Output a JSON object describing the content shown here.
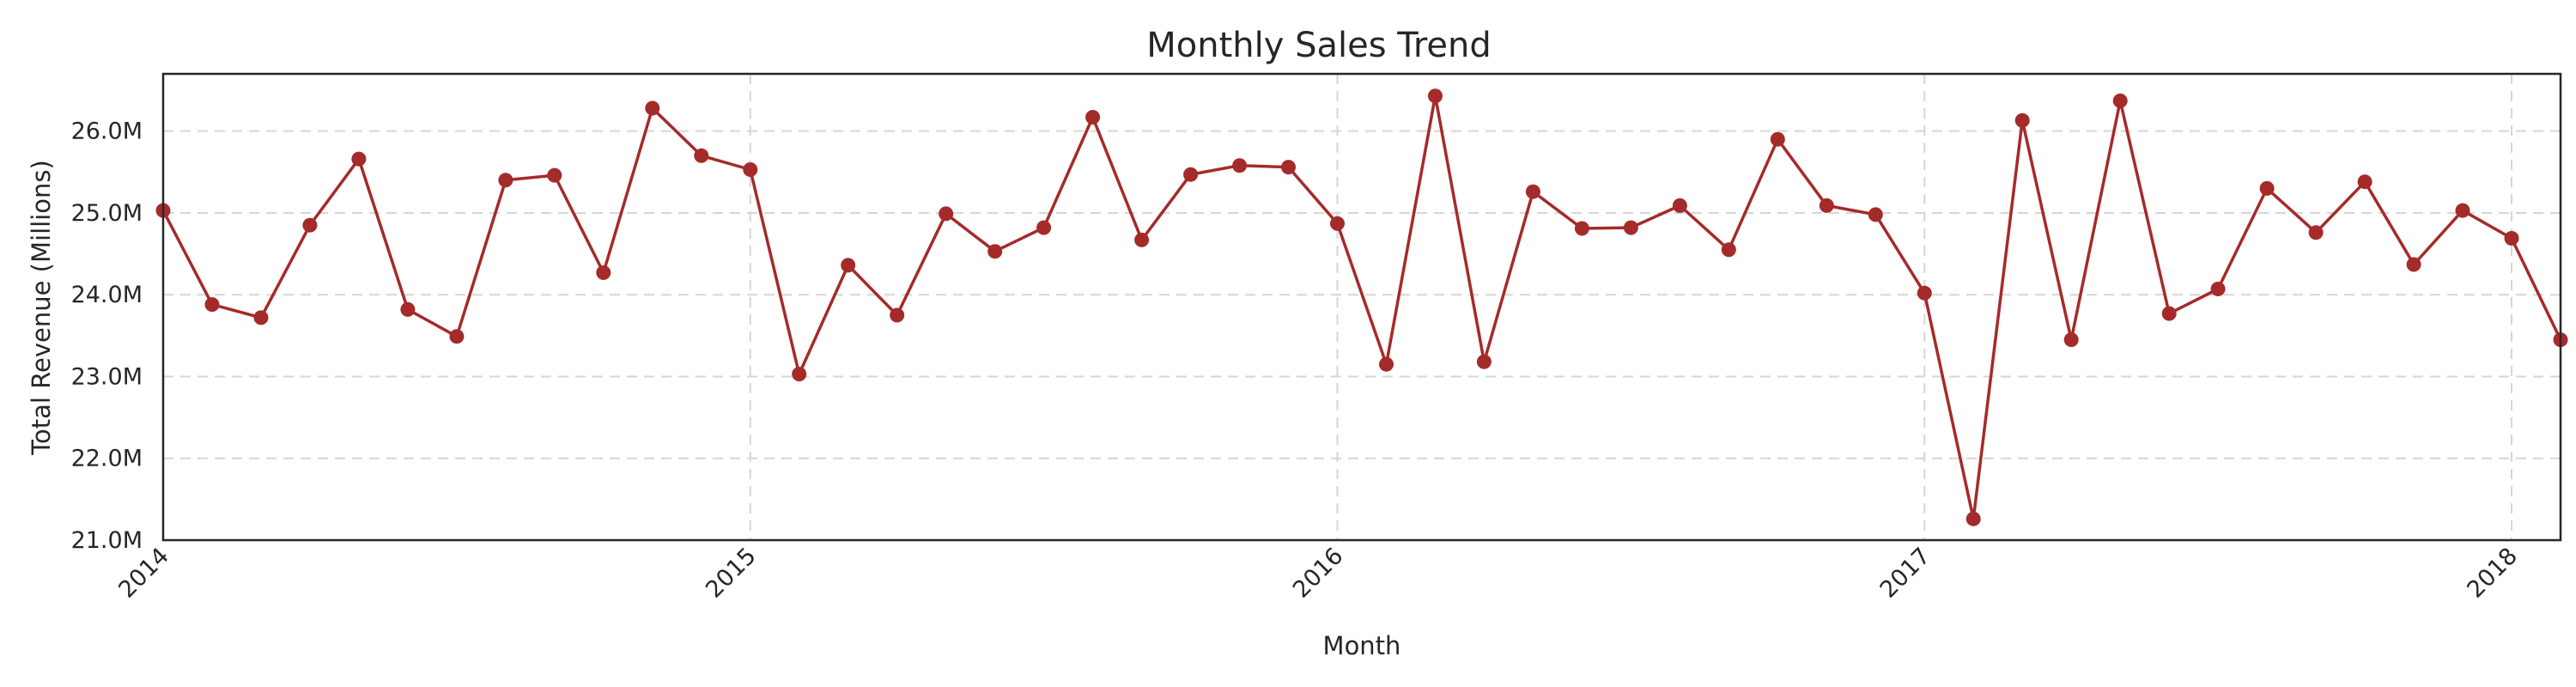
{
  "chart_data": {
    "type": "line",
    "title": "Monthly Sales Trend",
    "xlabel": "Month",
    "ylabel": "Total Revenue (Millions)",
    "ylim": [
      21.0,
      26.7
    ],
    "yticks": [
      21.0,
      22.0,
      23.0,
      24.0,
      25.0,
      26.0
    ],
    "ytick_labels": [
      "21.0M",
      "22.0M",
      "23.0M",
      "24.0M",
      "25.0M",
      "26.0M"
    ],
    "xlim": [
      "2014-01",
      "2018-02"
    ],
    "xticks": [
      "2014-01",
      "2015-01",
      "2016-01",
      "2017-01",
      "2018-01"
    ],
    "xtick_labels": [
      "2014",
      "2015",
      "2016",
      "2017",
      "2018"
    ],
    "grid": true,
    "color": "#a52a2a",
    "x": [
      "2014-01",
      "2014-02",
      "2014-03",
      "2014-04",
      "2014-05",
      "2014-06",
      "2014-07",
      "2014-08",
      "2014-09",
      "2014-10",
      "2014-11",
      "2014-12",
      "2015-01",
      "2015-02",
      "2015-03",
      "2015-04",
      "2015-05",
      "2015-06",
      "2015-07",
      "2015-08",
      "2015-09",
      "2015-10",
      "2015-11",
      "2015-12",
      "2016-01",
      "2016-02",
      "2016-03",
      "2016-04",
      "2016-05",
      "2016-06",
      "2016-07",
      "2016-08",
      "2016-09",
      "2016-10",
      "2016-11",
      "2016-12",
      "2017-01",
      "2017-02",
      "2017-03",
      "2017-04",
      "2017-05",
      "2017-06",
      "2017-07",
      "2017-08",
      "2017-09",
      "2017-10",
      "2017-11",
      "2017-12",
      "2018-01",
      "2018-02"
    ],
    "series": [
      {
        "values": [
          25.03,
          23.88,
          23.72,
          24.85,
          25.66,
          23.82,
          23.49,
          25.4,
          25.46,
          24.27,
          26.28,
          25.7,
          25.53,
          23.03,
          24.36,
          23.75,
          24.99,
          24.53,
          24.82,
          26.17,
          24.67,
          25.47,
          25.58,
          25.56,
          24.87,
          23.15,
          26.43,
          23.18,
          25.26,
          24.81,
          24.82,
          25.09,
          24.55,
          25.9,
          25.09,
          24.98,
          24.02,
          21.26,
          26.13,
          23.45,
          26.37,
          23.77,
          24.07,
          25.3,
          24.76,
          25.38,
          24.37,
          25.03,
          24.69,
          23.45
        ]
      }
    ]
  }
}
